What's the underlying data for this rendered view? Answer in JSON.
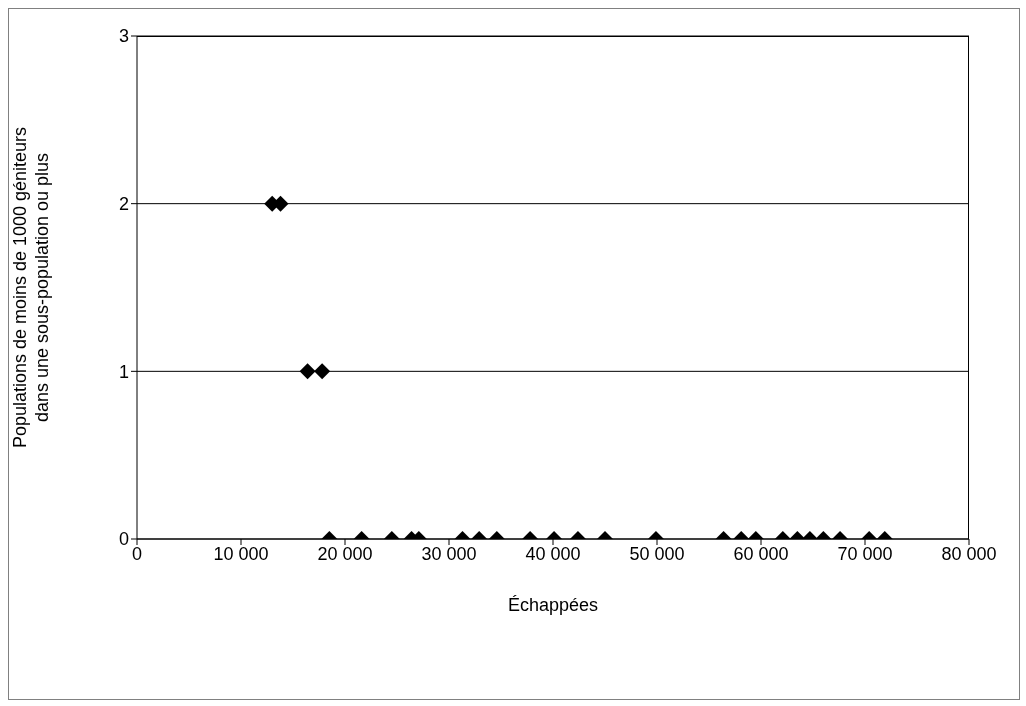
{
  "chart_data": {
    "type": "scatter",
    "xlabel": "Échappées",
    "ylabel": "Populations de moins de 1000 géniteurs\ndans une sous-population ou plus",
    "x": [
      13000,
      13800,
      16400,
      17800,
      18500,
      21600,
      24500,
      26400,
      27100,
      31300,
      32900,
      34600,
      37800,
      40100,
      42400,
      45000,
      49900,
      56400,
      58100,
      59500,
      62100,
      63500,
      64700,
      66000,
      67600,
      70400,
      71900
    ],
    "series": [
      {
        "color": "#000000",
        "values": [
          2,
          2,
          1,
          1,
          0,
          0,
          0,
          0,
          0,
          0,
          0,
          0,
          0,
          0,
          0,
          0,
          0,
          0,
          0,
          0,
          0,
          0,
          0,
          0,
          0,
          0,
          0
        ]
      }
    ],
    "xlim": [
      0,
      80000
    ],
    "xticks": [
      0,
      {
        "value": 10000,
        "label": "10 000"
      },
      {
        "value": 20000,
        "label": "20 000"
      },
      {
        "value": 30000,
        "label": "30 000"
      },
      {
        "value": 40000,
        "label": "40 000"
      },
      {
        "value": 50000,
        "label": "50 000"
      },
      {
        "value": 60000,
        "label": "60 000"
      },
      {
        "value": 70000,
        "label": "70 000"
      },
      {
        "value": 80000,
        "label": "80 000"
      }
    ],
    "ylim": [
      0,
      3
    ],
    "yticks": [
      0,
      1,
      2,
      3
    ],
    "grid": "y",
    "marker": "diamond"
  }
}
